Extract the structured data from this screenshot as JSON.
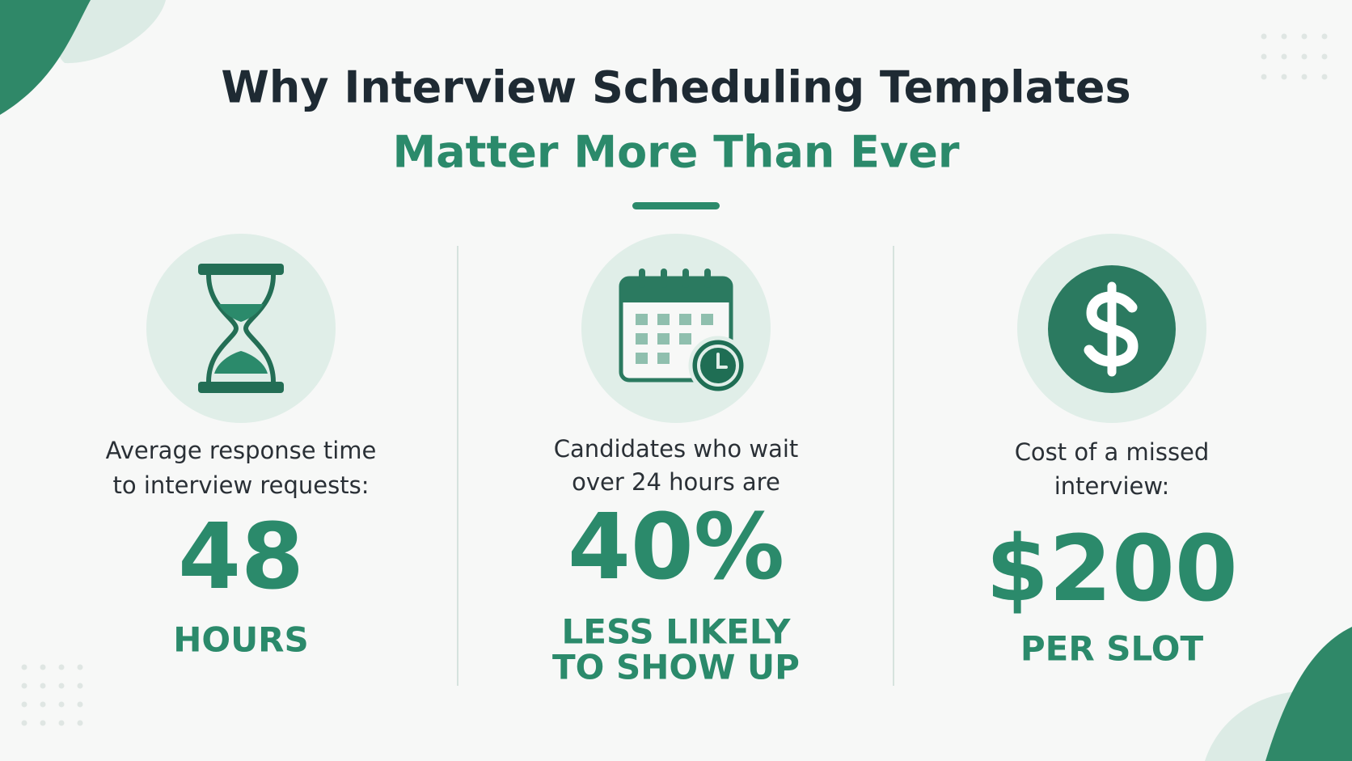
{
  "header": {
    "title_line1": "Why Interview Scheduling Templates",
    "title_line2": "Matter More Than Ever"
  },
  "stats": [
    {
      "description": [
        "Average response time",
        "to interview requests:"
      ],
      "value": "48",
      "unit": [
        "HOURS"
      ]
    },
    {
      "description": [
        "Candidates who wait",
        "over 24 hours are"
      ],
      "value": "40%",
      "unit": [
        "LESS LIKELY",
        "TO SHOW UP"
      ]
    },
    {
      "description": [
        "Cost of a missed",
        "interview:"
      ],
      "value": "$200",
      "unit": [
        "PER SLOT"
      ]
    }
  ]
}
